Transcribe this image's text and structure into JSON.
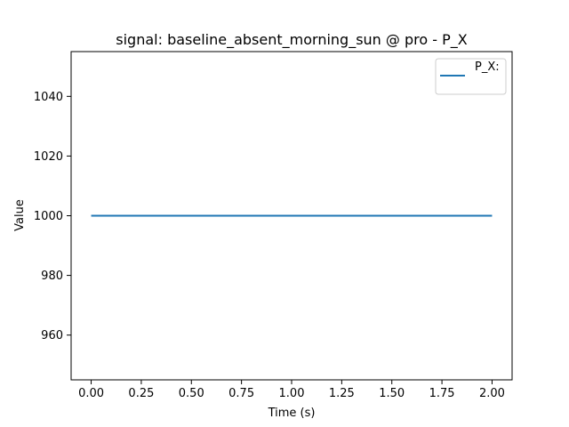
{
  "chart_data": {
    "type": "line",
    "title": "signal: baseline_absent_morning_sun @ pro - P_X",
    "xlabel": "Time (s)",
    "ylabel": "Value",
    "xlim": [
      -0.1,
      2.1
    ],
    "ylim": [
      945,
      1055
    ],
    "xticks": [
      0.0,
      0.25,
      0.5,
      0.75,
      1.0,
      1.25,
      1.5,
      1.75,
      2.0
    ],
    "xtick_labels": [
      "0.00",
      "0.25",
      "0.50",
      "0.75",
      "1.00",
      "1.25",
      "1.50",
      "1.75",
      "2.00"
    ],
    "yticks": [
      960,
      980,
      1000,
      1020,
      1040
    ],
    "ytick_labels": [
      "960",
      "980",
      "1000",
      "1020",
      "1040"
    ],
    "grid": false,
    "legend_position": "top-right",
    "series": [
      {
        "name": "P_X:",
        "color": "#1f77b4",
        "x": [
          0.0,
          2.0
        ],
        "y": [
          1000,
          1000
        ]
      }
    ]
  }
}
